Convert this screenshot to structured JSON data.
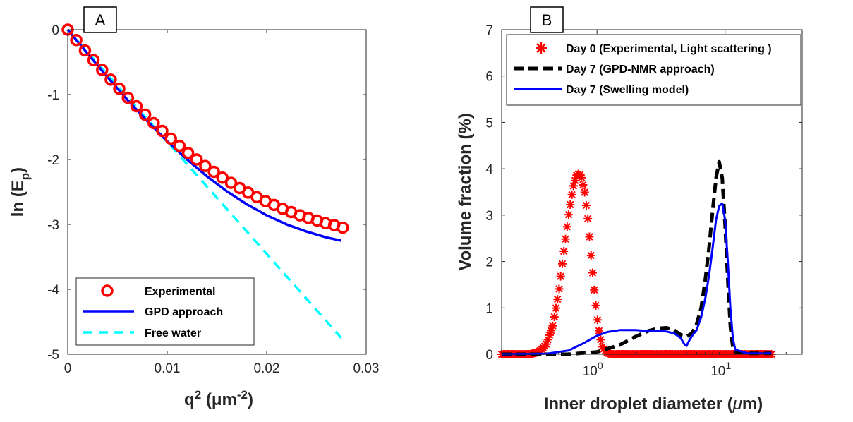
{
  "chart_data": [
    {
      "panel": "A",
      "type": "line",
      "xlabel": "q",
      "xlabel_sup": "2",
      "xlabel_units": " (μm",
      "xlabel_units_sup": "-2",
      "xlabel_close": ")",
      "ylabel": "ln (E",
      "ylabel_sub": "p",
      "ylabel_close": ")",
      "xlim": [
        0,
        0.03
      ],
      "ylim": [
        -5,
        0
      ],
      "xticks": [
        0,
        0.01,
        0.02,
        0.03
      ],
      "xtick_labels": [
        "0",
        "0.01",
        "0.02",
        "0.03"
      ],
      "yticks": [
        0,
        -1,
        -2,
        -3,
        -4,
        -5
      ],
      "ytick_labels": [
        "0",
        "-1",
        "-2",
        "-3",
        "-4",
        "-5"
      ],
      "legend_position": "bottom-right",
      "series": [
        {
          "name": "Experimental",
          "style": "circles",
          "color": "#ff0000",
          "x": [
            0,
            0.00086,
            0.00173,
            0.00259,
            0.00346,
            0.00432,
            0.00518,
            0.00605,
            0.00691,
            0.00778,
            0.00864,
            0.0095,
            0.01037,
            0.01123,
            0.0121,
            0.01296,
            0.01382,
            0.01469,
            0.01555,
            0.01642,
            0.01728,
            0.01814,
            0.01901,
            0.01987,
            0.02074,
            0.0216,
            0.02246,
            0.02333,
            0.02419,
            0.02506,
            0.02592,
            0.02678,
            0.02765
          ],
          "y": [
            0,
            -0.16,
            -0.32,
            -0.47,
            -0.62,
            -0.77,
            -0.91,
            -1.05,
            -1.18,
            -1.31,
            -1.44,
            -1.56,
            -1.68,
            -1.79,
            -1.9,
            -2.0,
            -2.1,
            -2.19,
            -2.28,
            -2.36,
            -2.44,
            -2.51,
            -2.58,
            -2.64,
            -2.7,
            -2.76,
            -2.81,
            -2.86,
            -2.9,
            -2.94,
            -2.98,
            -3.01,
            -3.05
          ]
        },
        {
          "name": "GPD approach",
          "style": "solid",
          "color": "#0000ff",
          "x": [
            0,
            0.002,
            0.004,
            0.006,
            0.008,
            0.01,
            0.012,
            0.014,
            0.016,
            0.018,
            0.02,
            0.022,
            0.024,
            0.026,
            0.0275
          ],
          "y": [
            0,
            -0.37,
            -0.73,
            -1.08,
            -1.41,
            -1.72,
            -2.0,
            -2.26,
            -2.49,
            -2.69,
            -2.86,
            -3.0,
            -3.11,
            -3.2,
            -3.25
          ]
        },
        {
          "name": "Free water",
          "style": "dashed",
          "color": "#00ffff",
          "x": [
            0,
            0.0275
          ],
          "y": [
            0,
            -4.75
          ]
        }
      ]
    },
    {
      "panel": "B",
      "type": "line",
      "xlabel": "Inner droplet diameter (",
      "xlabel_mu": "μ",
      "xlabel_close": "m)",
      "ylabel": "Volume fraction (%)",
      "xscale": "log",
      "xlim": [
        0.18,
        40
      ],
      "ylim": [
        0,
        7
      ],
      "xtick_labels": [
        {
          "base": "10",
          "exp": "0",
          "value": 1
        },
        {
          "base": "10",
          "exp": "1",
          "value": 10
        }
      ],
      "yticks": [
        0,
        1,
        2,
        3,
        4,
        5,
        6,
        7
      ],
      "ytick_labels": [
        "0",
        "1",
        "2",
        "3",
        "4",
        "5",
        "6",
        "7"
      ],
      "legend_position": "top",
      "series": [
        {
          "name": "Day 0 (Experimental, Light scattering )",
          "style": "stars",
          "color": "#ff0000",
          "x": [
            0.18,
            0.3,
            0.35,
            0.4,
            0.45,
            0.5,
            0.55,
            0.6,
            0.65,
            0.7,
            0.75,
            0.8,
            0.85,
            0.9,
            0.95,
            1.0,
            1.05,
            1.1,
            1.2,
            1.3,
            1.5,
            23
          ],
          "y": [
            0,
            0,
            0.05,
            0.2,
            0.6,
            1.3,
            2.2,
            3.0,
            3.6,
            3.9,
            3.85,
            3.5,
            2.9,
            2.1,
            1.4,
            0.8,
            0.4,
            0.15,
            0.03,
            0,
            0,
            0
          ]
        },
        {
          "name": "Day 7 (GPD-NMR approach)",
          "style": "dashed",
          "color": "#000000",
          "x": [
            0.18,
            0.6,
            1.0,
            1.5,
            2.0,
            2.5,
            3.0,
            3.5,
            4.0,
            4.5,
            5.0,
            5.5,
            6.0,
            6.5,
            7.0,
            7.5,
            8.0,
            8.5,
            9.0,
            9.5,
            10.0,
            10.5,
            11.0,
            11.5,
            12.0,
            15,
            23
          ],
          "y": [
            0,
            0,
            0.05,
            0.2,
            0.38,
            0.5,
            0.56,
            0.57,
            0.52,
            0.42,
            0.38,
            0.45,
            0.65,
            1.0,
            1.6,
            2.3,
            3.1,
            3.8,
            4.15,
            3.8,
            2.8,
            1.6,
            0.6,
            0.15,
            0.05,
            0.02,
            0.02
          ]
        },
        {
          "name": "Day 7 (Swelling model)",
          "style": "solid",
          "color": "#0000ff",
          "x": [
            0.18,
            0.4,
            0.6,
            0.8,
            1.0,
            1.2,
            1.5,
            2.0,
            2.5,
            3.0,
            3.5,
            4.0,
            4.5,
            4.8,
            5.0,
            5.3,
            5.6,
            6.0,
            6.5,
            7.0,
            7.5,
            8.0,
            8.5,
            9.0,
            9.5,
            10.0,
            10.5,
            11.0,
            11.5,
            12.0,
            15,
            23
          ],
          "y": [
            0,
            0.01,
            0.08,
            0.25,
            0.4,
            0.48,
            0.52,
            0.52,
            0.5,
            0.5,
            0.49,
            0.45,
            0.35,
            0.22,
            0.18,
            0.32,
            0.42,
            0.52,
            0.8,
            1.2,
            1.7,
            2.3,
            2.9,
            3.2,
            3.25,
            2.9,
            2.0,
            1.0,
            0.35,
            0.1,
            0.02,
            0.02
          ]
        }
      ]
    }
  ]
}
